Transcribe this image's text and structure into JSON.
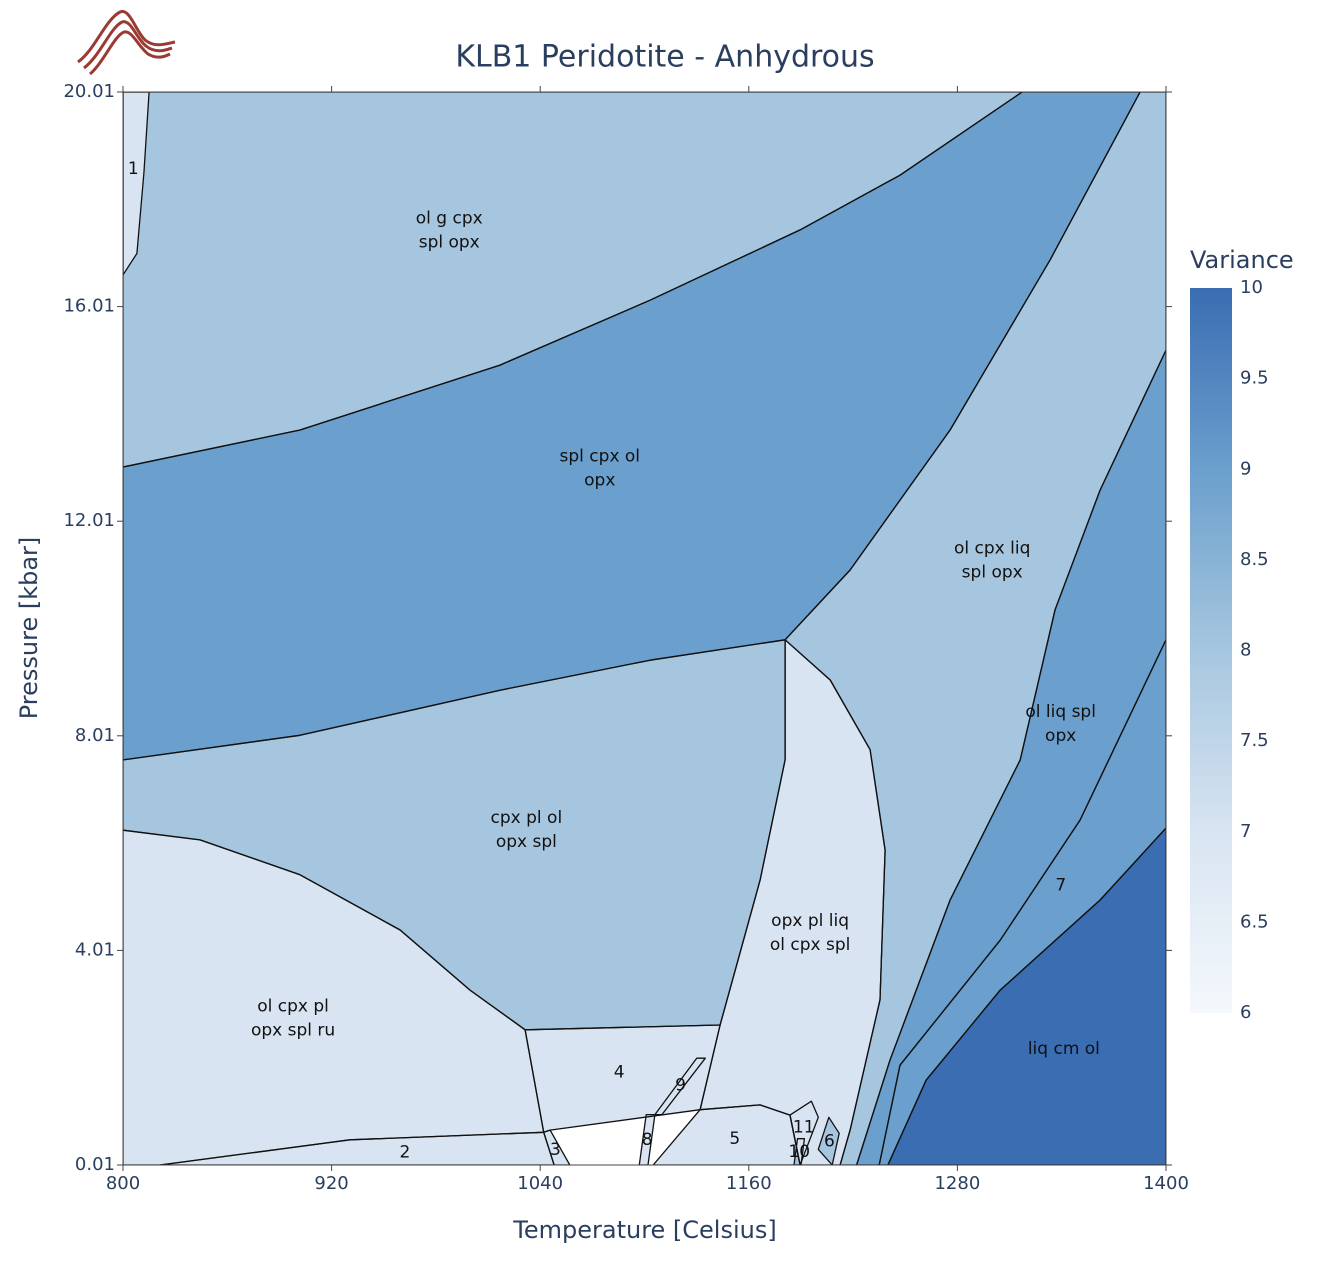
{
  "chart_data": {
    "type": "pseudosection",
    "title": "KLB1 Peridotite - Anhydrous",
    "x_label": "Temperature [Celsius]",
    "y_label": "Pressure [kbar]",
    "xlim": [
      800,
      1400
    ],
    "ylim": [
      0.01,
      20.01
    ],
    "xticks": [
      800,
      920,
      1040,
      1160,
      1280,
      1400
    ],
    "yticks": [
      0.01,
      4.01,
      8.01,
      12.01,
      16.01,
      20.01
    ],
    "colorbar_title": "Variance",
    "clim": [
      6,
      10
    ],
    "cticks": [
      6,
      6.5,
      7,
      7.5,
      8,
      8.5,
      9,
      9.5,
      10
    ],
    "colorscale": [
      [
        6,
        "#f4f8fc"
      ],
      [
        7,
        "#d8e4f1"
      ],
      [
        8,
        "#a6c6df"
      ],
      [
        9,
        "#6b9fcd"
      ],
      [
        10,
        "#3a6db2"
      ]
    ],
    "fields": [
      {
        "label": [
          "ol g cpx",
          "spl opx"
        ],
        "variance": 8,
        "T": [
          800,
          1317.2,
          1247,
          1189.5,
          1103.2,
          1016.9,
          901.8,
          800
        ],
        "P": [
          20.01,
          20.01,
          18.46,
          17.44,
          16.13,
          14.92,
          13.71,
          13.02
        ]
      },
      {
        "label": [
          "spl cpx ol",
          "opx"
        ],
        "variance": 9,
        "T": [
          800,
          901.8,
          1016.9,
          1103.2,
          1189.5,
          1247,
          1317.2,
          1385.1,
          1333.3,
          1275.8,
          1218.3,
          1180.9,
          1103.2,
          1016.9,
          901.8,
          800
        ],
        "P": [
          13.02,
          13.71,
          14.92,
          16.13,
          17.44,
          18.46,
          20.01,
          20.01,
          16.88,
          13.71,
          11.1,
          9.8,
          9.42,
          8.86,
          8.02,
          7.56
        ]
      },
      {
        "label": [
          "ol cpx liq",
          "spl opx"
        ],
        "variance": 8,
        "T": [
          1180.9,
          1218.3,
          1275.8,
          1333.3,
          1385.1,
          1400,
          1400,
          1362.1,
          1336.2,
          1316.1,
          1275.8,
          1241.3,
          1222,
          1212.5,
          1218.3,
          1235.5,
          1238.4,
          1229.8,
          1206.8
        ],
        "P": [
          9.8,
          11.1,
          13.71,
          16.88,
          20.01,
          20.01,
          15.2,
          12.59,
          10.36,
          7.56,
          4.95,
          1.97,
          0.01,
          0.01,
          0.66,
          3.09,
          5.88,
          7.75,
          9.05
        ]
      },
      {
        "label": [
          "ol liq spl",
          "opx"
        ],
        "variance": 9,
        "T": [
          1222,
          1241.3,
          1275.8,
          1316.1,
          1336.2,
          1362.1,
          1400,
          1400,
          1350.6,
          1304.6,
          1247,
          1235
        ],
        "P": [
          0.01,
          1.97,
          4.95,
          7.56,
          10.36,
          12.59,
          15.2,
          9.8,
          6.44,
          4.2,
          1.87,
          0.01
        ]
      },
      {
        "label": [
          "7"
        ],
        "variance": 9,
        "T": [
          1235,
          1247,
          1304.6,
          1350.6,
          1400,
          1400,
          1362.1,
          1304.6,
          1262,
          1240
        ],
        "P": [
          0.01,
          1.87,
          4.2,
          6.44,
          9.8,
          6.29,
          4.95,
          3.27,
          1.59,
          0.01
        ]
      },
      {
        "label": [
          "liq cm ol"
        ],
        "variance": 10,
        "T": [
          1240,
          1262,
          1304.6,
          1362.1,
          1400,
          1400
        ],
        "P": [
          0.01,
          1.59,
          3.27,
          4.95,
          6.29,
          0.01
        ]
      },
      {
        "label": [
          "cpx pl ol",
          "opx spl"
        ],
        "variance": 8,
        "T": [
          800,
          901.8,
          1016.9,
          1103.2,
          1180.9,
          1180.9,
          1166.5,
          1143.5,
          1031.3,
          999.6,
          959.4,
          901.8,
          844.3,
          800
        ],
        "P": [
          7.56,
          8.02,
          8.86,
          9.42,
          9.8,
          7.56,
          5.32,
          2.62,
          2.53,
          3.27,
          4.39,
          5.42,
          6.07,
          6.25
        ]
      },
      {
        "label": [
          "ol cpx pl",
          "opx spl ru"
        ],
        "variance": 7,
        "T": [
          800,
          844.3,
          901.8,
          959.4,
          999.6,
          1031.3,
          1042,
          930.6,
          821.3,
          800
        ],
        "P": [
          6.25,
          6.07,
          5.42,
          4.39,
          3.27,
          2.53,
          0.62,
          0.48,
          0.01,
          0.01
        ]
      },
      {
        "label": [
          "opx pl liq",
          "ol cpx spl"
        ],
        "variance": 7,
        "T": [
          1180.9,
          1206.8,
          1229.8,
          1238.4,
          1235.5,
          1218.3,
          1212.5,
          1189.5,
          1183.7,
          1166.5,
          1132,
          1143.5,
          1166.5,
          1180.9
        ],
        "P": [
          9.8,
          9.05,
          7.75,
          5.88,
          3.09,
          0.66,
          0.01,
          0.01,
          0.94,
          1.13,
          1.04,
          2.62,
          5.32,
          7.56
        ]
      },
      {
        "label": [
          "4"
        ],
        "variance": 7,
        "T": [
          1031.3,
          1143.5,
          1132,
          1045.7,
          1042
        ],
        "P": [
          2.53,
          2.62,
          1.04,
          0.66,
          0.62
        ]
      },
      {
        "label": [
          "2"
        ],
        "variance": 7,
        "T": [
          821.3,
          930.6,
          1042,
          1048
        ],
        "P": [
          0.01,
          0.48,
          0.62,
          0.01
        ]
      },
      {
        "label": [
          "3"
        ],
        "variance": 7,
        "T": [
          1042,
          1045.7,
          1057,
          1048
        ],
        "P": [
          0.62,
          0.66,
          0.01,
          0.01
        ]
      },
      {
        "label": [
          "5"
        ],
        "variance": 7,
        "T": [
          1105,
          1132,
          1166.5,
          1183.7,
          1189.5
        ],
        "P": [
          0.01,
          1.04,
          1.13,
          0.94,
          0.01
        ]
      },
      {
        "label": [
          "8"
        ],
        "variance": 7,
        "T": [
          1097,
          1101,
          1106,
          1102
        ],
        "P": [
          0.01,
          0.95,
          0.95,
          0.01
        ]
      },
      {
        "label": [
          "9"
        ],
        "variance": 7,
        "T": [
          1106,
          1130,
          1135,
          1110
        ],
        "P": [
          0.95,
          2,
          2,
          0.95
        ]
      },
      {
        "label": [
          "10"
        ],
        "variance": 8,
        "T": [
          1186,
          1188,
          1192,
          1190
        ],
        "P": [
          0.01,
          0.5,
          0.5,
          0.01
        ]
      },
      {
        "label": [
          "11"
        ],
        "variance": 7,
        "T": [
          1183.7,
          1196,
          1200,
          1189.5
        ],
        "P": [
          0.94,
          1.2,
          0.9,
          0.01
        ]
      },
      {
        "label": [
          "6"
        ],
        "variance": 8,
        "T": [
          1200,
          1206,
          1212,
          1208
        ],
        "P": [
          0.3,
          0.9,
          0.6,
          0.01
        ]
      },
      {
        "label": [
          "1"
        ],
        "variance": 7,
        "T": [
          800,
          815,
          812,
          808,
          800
        ],
        "P": [
          20.01,
          20.01,
          18.5,
          17,
          16.6
        ]
      }
    ]
  }
}
